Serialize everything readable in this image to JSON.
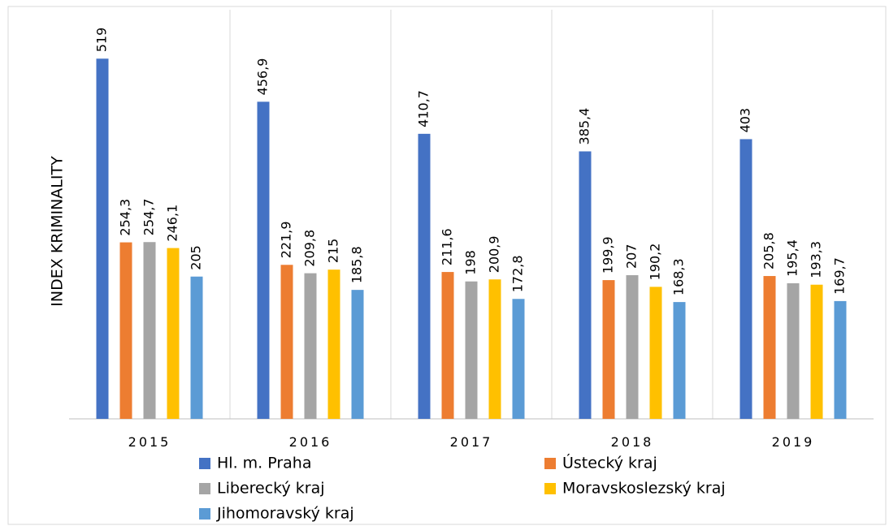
{
  "chart_data": {
    "type": "bar",
    "y_label": "INDEX KRIMINALITY",
    "categories": [
      "2015",
      "2016",
      "2017",
      "2018",
      "2019"
    ],
    "ylim": [
      0,
      600
    ],
    "series": [
      {
        "name": "Hl. m. Praha",
        "color": "#4472c4",
        "values": [
          519,
          456.9,
          410.7,
          385.4,
          403
        ],
        "value_labels": [
          "519",
          "456,9",
          "410,7",
          "385,4",
          "403"
        ]
      },
      {
        "name": "Ústecký kraj",
        "color": "#ed7d31",
        "values": [
          254.3,
          221.9,
          211.6,
          199.9,
          205.8
        ],
        "value_labels": [
          "254,3",
          "221,9",
          "211,6",
          "199,9",
          "205,8"
        ]
      },
      {
        "name": "Liberecký kraj",
        "color": "#a5a5a5",
        "values": [
          254.7,
          209.8,
          198,
          207,
          195.4
        ],
        "value_labels": [
          "254,7",
          "209,8",
          "198",
          "207",
          "195,4"
        ]
      },
      {
        "name": "Moravskoslezský kraj",
        "color": "#ffc000",
        "values": [
          246.1,
          215,
          200.9,
          190.2,
          193.3
        ],
        "value_labels": [
          "246,1",
          "215",
          "200,9",
          "190,2",
          "193,3"
        ]
      },
      {
        "name": "Jihomoravský kraj",
        "color": "#5b9bd5",
        "values": [
          205,
          185.8,
          172.8,
          168.3,
          169.7
        ],
        "value_labels": [
          "205",
          "185,8",
          "172,8",
          "168,3",
          "169,7"
        ]
      }
    ]
  }
}
